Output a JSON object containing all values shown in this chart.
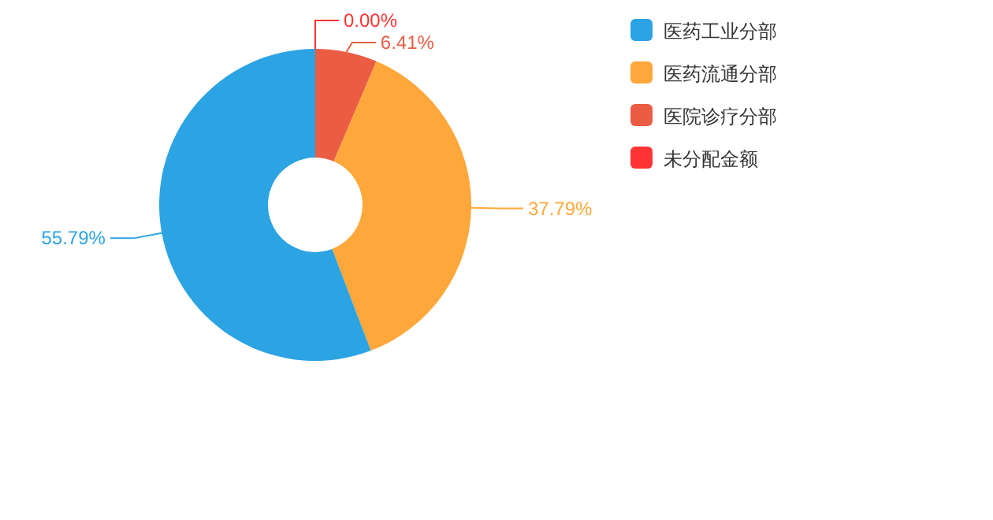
{
  "chart_data": {
    "type": "donut",
    "categories": [
      "医药工业分部",
      "医药流通分部",
      "医院诊疗分部",
      "未分配金额"
    ],
    "values": [
      55.79,
      37.79,
      6.41,
      0.0
    ],
    "colors": [
      "#2ca3e3",
      "#ffa73a",
      "#ea5d44",
      "#ff3333"
    ],
    "value_labels": [
      "55.79%",
      "37.79%",
      "6.41%",
      "0.00%"
    ],
    "legend": "top right"
  }
}
